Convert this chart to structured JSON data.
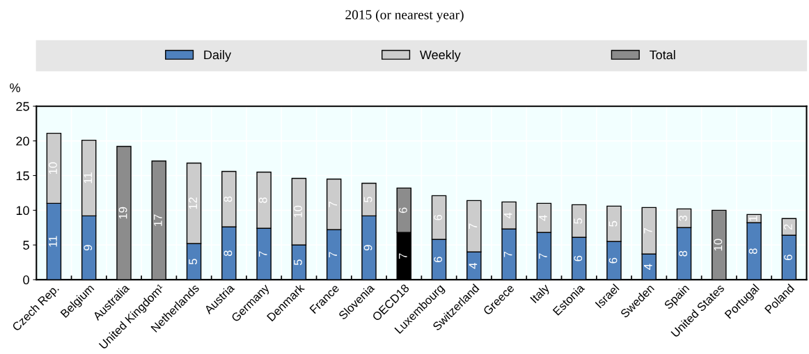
{
  "chart_data": {
    "type": "bar",
    "title": "2015 (or nearest year)",
    "ylabel": "%",
    "categories": [
      "Czech Rep.",
      "Belgium",
      "Australia",
      "United Kingdom¹",
      "Netherlands",
      "Austria",
      "Germany",
      "Denmark",
      "France",
      "Slovenia",
      "OECD18",
      "Luxembourg",
      "Switzerland",
      "Greece",
      "Italy",
      "Estonia",
      "Israel",
      "Sweden",
      "Spain",
      "United States",
      "Portugal",
      "Poland"
    ],
    "stacked": true,
    "series": [
      {
        "name": "Daily",
        "color": "#4f81bd",
        "colors": [
          "#4f81bd",
          "#4f81bd",
          "#4f81bd",
          "#4f81bd",
          "#4f81bd",
          "#4f81bd",
          "#4f81bd",
          "#4f81bd",
          "#4f81bd",
          "#4f81bd",
          "#000000",
          "#4f81bd",
          "#4f81bd",
          "#4f81bd",
          "#4f81bd",
          "#4f81bd",
          "#4f81bd",
          "#4f81bd",
          "#4f81bd",
          "#4f81bd",
          "#4f81bd",
          "#4f81bd"
        ],
        "values": [
          11.0,
          9.2,
          null,
          null,
          5.2,
          7.6,
          7.4,
          5.0,
          7.2,
          9.2,
          6.8,
          5.8,
          4.0,
          7.3,
          6.8,
          6.1,
          5.5,
          3.7,
          7.5,
          null,
          8.2,
          6.4
        ],
        "value_labels": [
          "11",
          "9",
          null,
          null,
          "5",
          "8",
          "7",
          "5",
          "7",
          "9",
          "7",
          "6",
          "4",
          "7",
          "7",
          "6",
          "6",
          "4",
          "8",
          null,
          "8",
          "6"
        ]
      },
      {
        "name": "Weekly",
        "color": "#cccccc",
        "colors": [
          "#cccccc",
          "#cccccc",
          "#cccccc",
          "#cccccc",
          "#cccccc",
          "#cccccc",
          "#cccccc",
          "#cccccc",
          "#cccccc",
          "#cccccc",
          "#8c8c8c",
          "#cccccc",
          "#cccccc",
          "#cccccc",
          "#cccccc",
          "#cccccc",
          "#cccccc",
          "#cccccc",
          "#cccccc",
          "#cccccc",
          "#cccccc",
          "#cccccc"
        ],
        "values": [
          10.1,
          10.9,
          null,
          null,
          11.6,
          8.0,
          8.1,
          9.6,
          7.3,
          4.7,
          6.4,
          6.3,
          7.4,
          3.9,
          4.2,
          4.7,
          5.1,
          6.7,
          2.7,
          null,
          1.2,
          2.4
        ],
        "value_labels": [
          "10",
          "11",
          null,
          null,
          "12",
          "8",
          "8",
          "10",
          "7",
          "5",
          "6",
          "6",
          "7",
          "4",
          "4",
          "5",
          "5",
          "7",
          "3",
          null,
          "1",
          "2"
        ]
      },
      {
        "name": "Total",
        "color": "#8c8c8c",
        "values": [
          null,
          null,
          19.2,
          17.1,
          null,
          null,
          null,
          null,
          null,
          null,
          null,
          null,
          null,
          null,
          null,
          null,
          null,
          null,
          null,
          10.0,
          null,
          null
        ],
        "value_labels": [
          null,
          null,
          "19",
          "17",
          null,
          null,
          null,
          null,
          null,
          null,
          null,
          null,
          null,
          null,
          null,
          null,
          null,
          null,
          null,
          "10",
          null,
          null
        ]
      }
    ],
    "ylim": [
      0,
      25
    ],
    "yticks": [
      0,
      5,
      10,
      15,
      20,
      25
    ],
    "grid": true,
    "legend": "top"
  }
}
